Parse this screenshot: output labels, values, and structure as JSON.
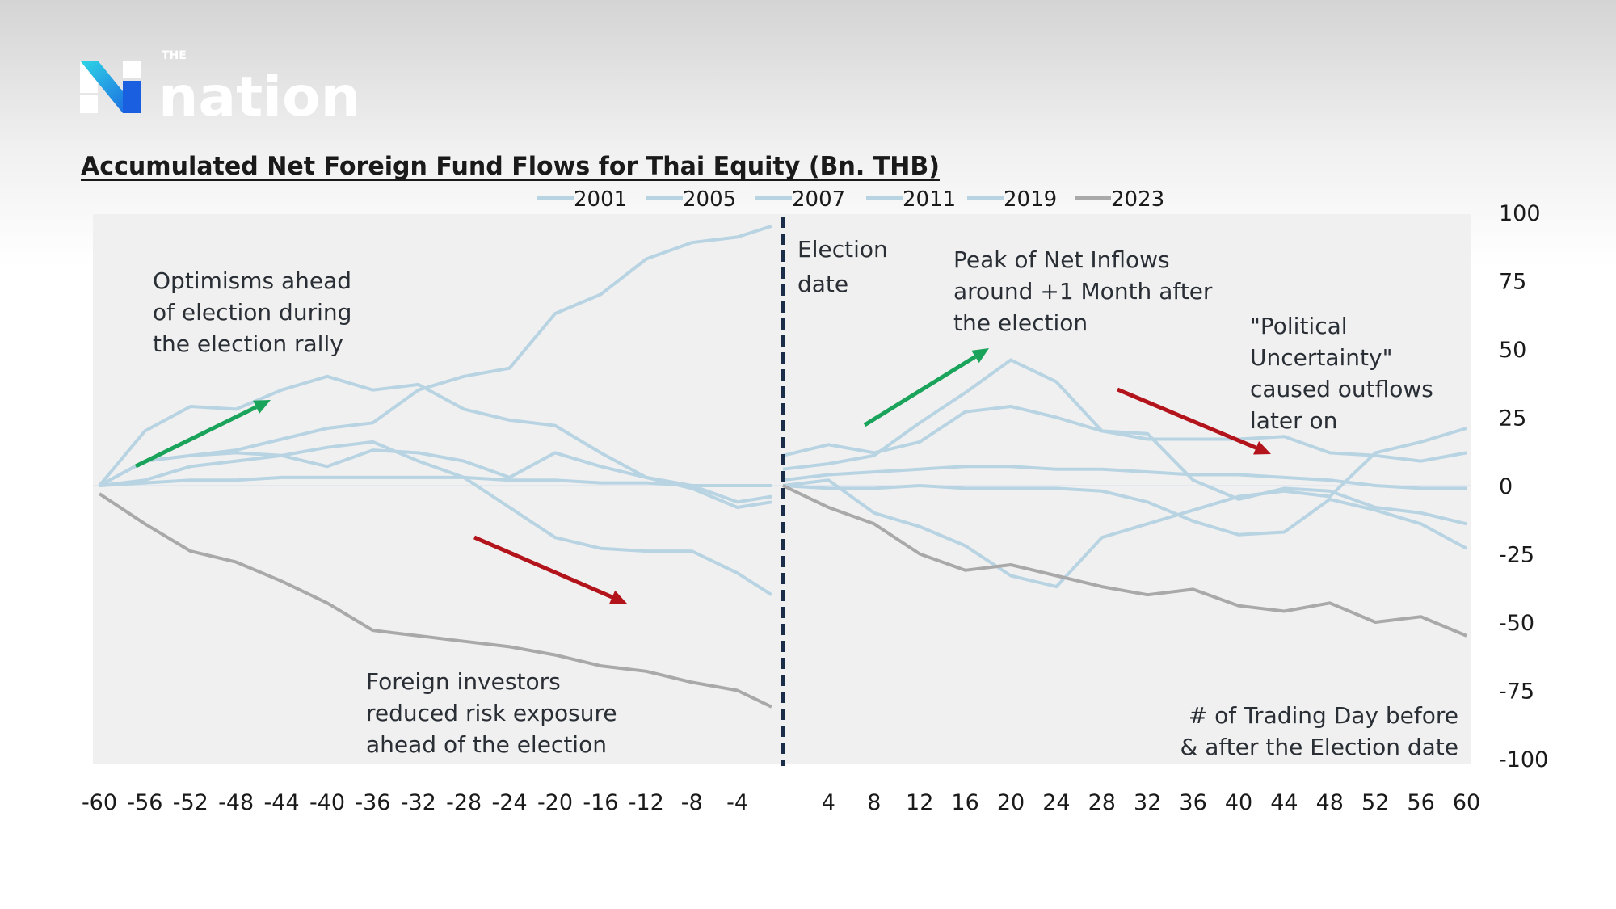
{
  "brand": {
    "small": "THE",
    "name": "nation"
  },
  "chart_data": {
    "type": "line",
    "title": "Accumulated Net Foreign Fund Flows for Thai Equity (Bn. THB)",
    "xlabel": "# of Trading Day before & after the Election date",
    "ylim": [
      -100,
      100
    ],
    "xlim": [
      -60,
      60
    ],
    "y_ticks": [
      "100",
      "75",
      "50",
      "25",
      "0",
      "-25",
      "-50",
      "-75",
      "-100"
    ],
    "y_tick_values": [
      100,
      75,
      50,
      25,
      0,
      -25,
      -50,
      -75,
      -100
    ],
    "x_ticks": [
      "-60",
      "-56",
      "-52",
      "-48",
      "-44",
      "-40",
      "-36",
      "-32",
      "-28",
      "-24",
      "-20",
      "-16",
      "-12",
      "-8",
      "-4",
      "4",
      "8",
      "12",
      "16",
      "20",
      "24",
      "28",
      "32",
      "36",
      "40",
      "44",
      "48",
      "52",
      "56",
      "60"
    ],
    "x_tick_values": [
      -60,
      -56,
      -52,
      -48,
      -44,
      -40,
      -36,
      -32,
      -28,
      -24,
      -20,
      -16,
      -12,
      -8,
      -4,
      4,
      8,
      12,
      16,
      20,
      24,
      28,
      32,
      36,
      40,
      44,
      48,
      52,
      56,
      60
    ],
    "legend_position": "top",
    "grid": false,
    "colors": {
      "historical": "#b8d4e3",
      "2023": "#a9a9a9",
      "up_arrow": "#1aa35a",
      "down_arrow": "#b3141c",
      "election_line": "#1a2e4a",
      "plot_bg": "#f0f0f0"
    },
    "x_before": [
      -60,
      -56,
      -52,
      -48,
      -44,
      -40,
      -36,
      -32,
      -28,
      -24,
      -20,
      -16,
      -12,
      -8,
      -4,
      -1
    ],
    "x_after": [
      0,
      4,
      8,
      12,
      16,
      20,
      24,
      28,
      32,
      36,
      40,
      44,
      48,
      52,
      56,
      60
    ],
    "series": [
      {
        "name": "2001",
        "before": [
          0,
          9,
          11,
          13,
          17,
          21,
          23,
          35,
          40,
          43,
          63,
          70,
          83,
          89,
          91,
          95
        ],
        "after": [
          6,
          8,
          11,
          23,
          34,
          46,
          38,
          20,
          17,
          17,
          17,
          18,
          12,
          11,
          9,
          12
        ]
      },
      {
        "name": "2005",
        "before": [
          0,
          20,
          29,
          28,
          35,
          40,
          35,
          37,
          28,
          24,
          22,
          12,
          3,
          0,
          -6,
          -4
        ],
        "after": [
          11,
          15,
          12,
          16,
          27,
          29,
          25,
          20,
          19,
          2,
          -5,
          -1,
          -2,
          -8,
          -10,
          -14
        ]
      },
      {
        "name": "2007",
        "before": [
          0,
          9,
          11,
          12,
          11,
          14,
          16,
          9,
          3,
          -8,
          -19,
          -23,
          -24,
          -24,
          -32,
          -40
        ],
        "after": [
          0,
          2,
          -10,
          -15,
          -22,
          -33,
          -37,
          -19,
          -14,
          -9,
          -4,
          -2,
          -4,
          12,
          16,
          21
        ]
      },
      {
        "name": "2011",
        "before": [
          0,
          2,
          7,
          9,
          11,
          7,
          13,
          12,
          9,
          3,
          12,
          7,
          3,
          -1,
          -8,
          -6
        ],
        "after": [
          2,
          4,
          5,
          6,
          7,
          7,
          6,
          6,
          5,
          4,
          4,
          3,
          2,
          0,
          -1,
          -1
        ]
      },
      {
        "name": "2019",
        "before": [
          0,
          1,
          2,
          2,
          3,
          3,
          3,
          3,
          3,
          2,
          2,
          1,
          1,
          0,
          0,
          0
        ],
        "after": [
          0,
          -1,
          -1,
          0,
          -1,
          -1,
          -1,
          -2,
          -6,
          -13,
          -18,
          -17,
          -5,
          -9,
          -14,
          -23
        ]
      },
      {
        "name": "2023",
        "before": [
          -3,
          -14,
          -24,
          -28,
          -35,
          -43,
          -53,
          -55,
          -57,
          -59,
          -62,
          -66,
          -68,
          -72,
          -75,
          -81
        ],
        "after": [
          0,
          -8,
          -14,
          -25,
          -31,
          -29,
          -33,
          -37,
          -40,
          -38,
          -44,
          -46,
          -43,
          -50,
          -48,
          -55
        ]
      }
    ],
    "annotations": {
      "pre_rally": [
        "Optimisms ahead",
        "of election during",
        "the election rally"
      ],
      "pre_outflow": [
        "Foreign investors",
        "reduced risk exposure",
        "ahead of the election"
      ],
      "election": [
        "Election",
        "date"
      ],
      "post_peak": [
        "Peak of Net Inflows",
        "around +1 Month after",
        "the election"
      ],
      "post_outflow": [
        "\"Political",
        "Uncertainty\"",
        "caused outflows",
        "later on"
      ],
      "axis_note": [
        "# of Trading Day before",
        "& after the Election date"
      ]
    }
  }
}
